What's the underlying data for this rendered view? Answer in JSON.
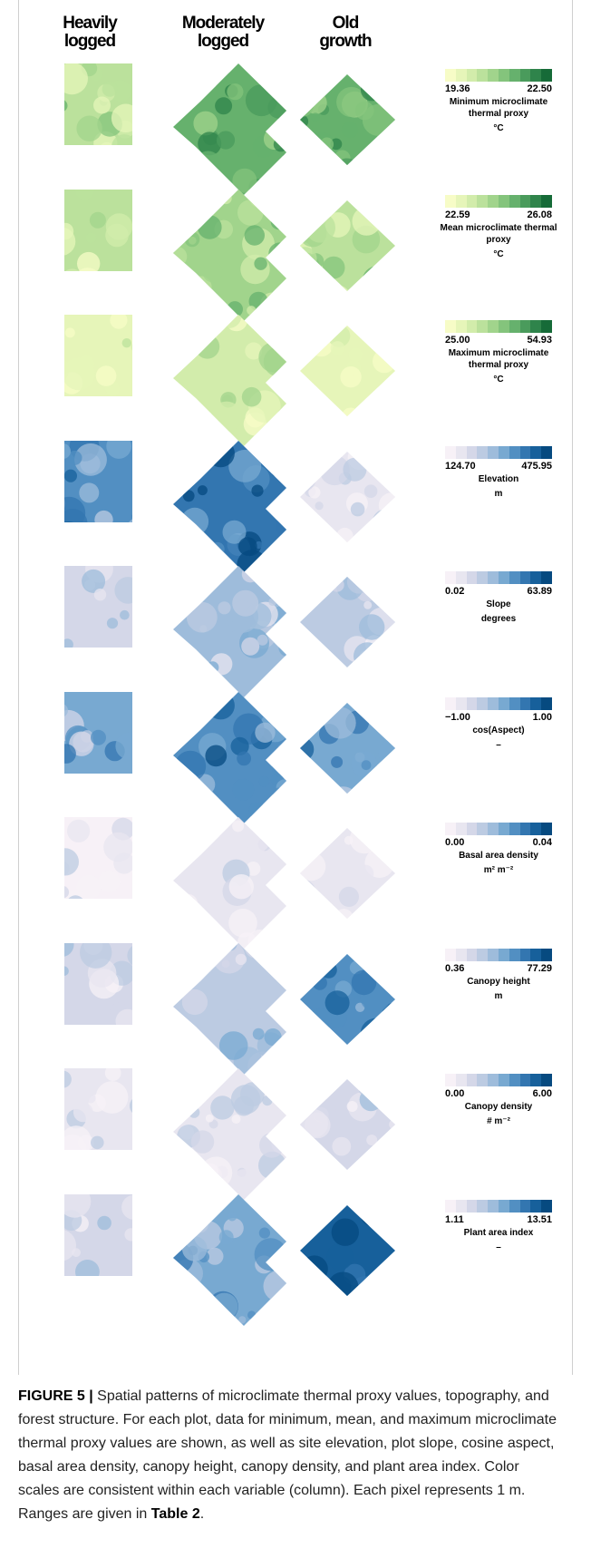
{
  "columns": [
    {
      "line1": "Heavily",
      "line2": "logged"
    },
    {
      "line1": "Moderately",
      "line2": "logged"
    },
    {
      "line1": "Old",
      "line2": "growth"
    }
  ],
  "palettes": {
    "green": [
      "#f7fcc7",
      "#e6f5b9",
      "#d2ecab",
      "#bbe19c",
      "#a1d48c",
      "#84c47c",
      "#66b16d",
      "#4a9b5c",
      "#2f844b",
      "#166b38"
    ],
    "blue": [
      "#f7f1f7",
      "#e8e6f0",
      "#d4d7e8",
      "#bccbe2",
      "#9ebcdb",
      "#78a9d1",
      "#528fc2",
      "#3376b0",
      "#17609b",
      "#064a80"
    ]
  },
  "rows": [
    {
      "id": "min",
      "palette": "green",
      "min": "19.36",
      "max": "22.50",
      "label": "Minimum microclimate thermal proxy",
      "unit": "°C",
      "levels": [
        0.35,
        0.7,
        0.72
      ]
    },
    {
      "id": "mean",
      "palette": "green",
      "min": "22.59",
      "max": "26.08",
      "label": "Mean microclimate thermal proxy",
      "unit": "°C",
      "levels": [
        0.3,
        0.45,
        0.35
      ]
    },
    {
      "id": "max",
      "palette": "green",
      "min": "25.00",
      "max": "54.93",
      "label": "Maximum microclimate thermal proxy",
      "unit": "°C",
      "levels": [
        0.15,
        0.2,
        0.06
      ]
    },
    {
      "id": "elev",
      "palette": "blue",
      "min": "124.70",
      "max": "475.95",
      "label": "Elevation",
      "unit": "m",
      "levels": [
        0.62,
        0.82,
        0.1
      ]
    },
    {
      "id": "slope",
      "palette": "blue",
      "min": "0.02",
      "max": "63.89",
      "label": "Slope",
      "unit": "degrees",
      "levels": [
        0.2,
        0.4,
        0.3
      ]
    },
    {
      "id": "aspect",
      "palette": "blue",
      "min": "−1.00",
      "max": "1.00",
      "label": "cos(Aspect)",
      "unit": "–",
      "levels": [
        0.5,
        0.7,
        0.6
      ]
    },
    {
      "id": "basal",
      "palette": "blue",
      "min": "0.00",
      "max": "0.04",
      "label": "Basal area density",
      "unit": "m² m⁻²",
      "levels": [
        0.05,
        0.08,
        0.06
      ]
    },
    {
      "id": "height",
      "palette": "blue",
      "min": "0.36",
      "max": "77.29",
      "label": "Canopy height",
      "unit": "m",
      "levels": [
        0.2,
        0.35,
        0.7
      ]
    },
    {
      "id": "density",
      "palette": "blue",
      "min": "0.00",
      "max": "6.00",
      "label": "Canopy density",
      "unit": "# m⁻²",
      "levels": [
        0.15,
        0.12,
        0.22
      ]
    },
    {
      "id": "pai",
      "palette": "blue",
      "min": "1.11",
      "max": "13.51",
      "label": "Plant area index",
      "unit": "–",
      "levels": [
        0.18,
        0.55,
        0.85
      ]
    }
  ],
  "caption": {
    "label": "FIGURE 5 |",
    "text": " Spatial patterns of microclimate thermal proxy values, topography, and forest structure. For each plot, data for minimum, mean, and maximum microclimate thermal proxy values are shown, as well as site elevation, plot slope, cosine aspect, basal area density, canopy height, canopy density, and plant area index. Color scales are consistent within each variable (column). Each pixel represents 1 m. Ranges are given in ",
    "table_ref": "Table 2",
    "end": "."
  }
}
